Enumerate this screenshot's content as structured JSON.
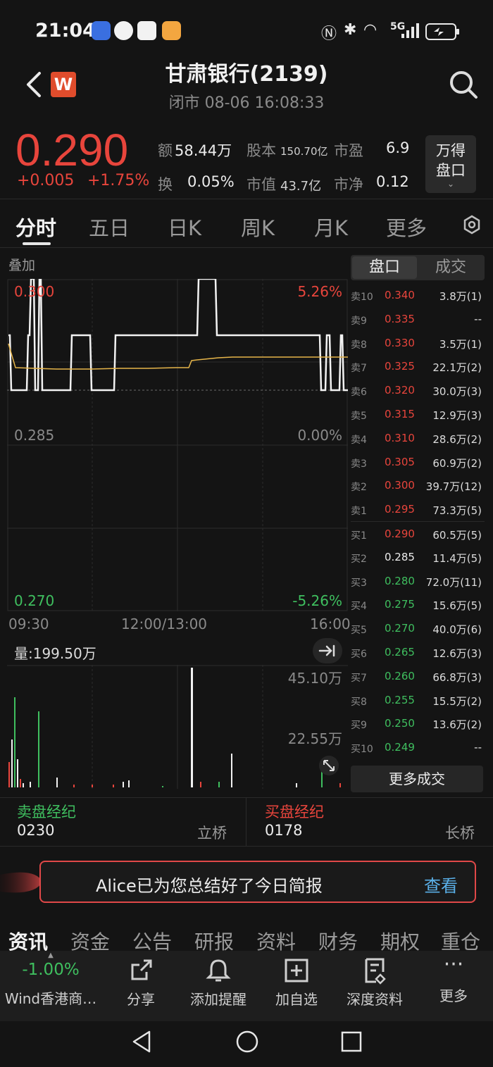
{
  "status_bar": {
    "time": "21:04",
    "network": "5G"
  },
  "header": {
    "logo_text": "W",
    "title": "甘肃银行(2139)",
    "subtitle": "闭市 08-06 16:08:33"
  },
  "quote": {
    "price": "0.290",
    "change": "+0.005",
    "change_pct": "+1.75%",
    "stats": {
      "amount_label": "额",
      "amount": "58.44万",
      "share_cap_label": "股本",
      "share_cap": "150.70亿",
      "pe_label": "市盈",
      "pe": "6.9",
      "turnover_label": "换",
      "turnover": "0.05%",
      "mkt_cap_label": "市值",
      "mkt_cap": "43.7亿",
      "pb_label": "市净",
      "pb": "0.12"
    },
    "wande_button": {
      "line1": "万得",
      "line2": "盘口"
    }
  },
  "tabs": [
    "分时",
    "五日",
    "日K",
    "周K",
    "月K",
    "更多"
  ],
  "chart": {
    "overlay_label": "叠加",
    "y_left": [
      "0.300",
      "0.285",
      "0.270"
    ],
    "y_right": [
      "5.26%",
      "0.00%",
      "-5.26%"
    ],
    "x_labels": [
      "09:30",
      "12:00/13:00",
      "16:00"
    ],
    "volume_label": "量:199.50万",
    "vol_ticks": [
      "45.10万",
      "22.55万"
    ]
  },
  "chart_data": {
    "type": "line",
    "ylim": [
      0.27,
      0.3
    ],
    "series": [],
    "volume_max": "45.10万"
  },
  "order_book": {
    "tabs": [
      "盘口",
      "成交"
    ],
    "asks": [
      {
        "label": "卖10",
        "price": "0.340",
        "vol": "3.8万(1)"
      },
      {
        "label": "卖9",
        "price": "0.335",
        "vol": "--"
      },
      {
        "label": "卖8",
        "price": "0.330",
        "vol": "3.5万(1)"
      },
      {
        "label": "卖7",
        "price": "0.325",
        "vol": "22.1万(2)"
      },
      {
        "label": "卖6",
        "price": "0.320",
        "vol": "30.0万(3)"
      },
      {
        "label": "卖5",
        "price": "0.315",
        "vol": "12.9万(3)"
      },
      {
        "label": "卖4",
        "price": "0.310",
        "vol": "28.6万(2)"
      },
      {
        "label": "卖3",
        "price": "0.305",
        "vol": "60.9万(2)"
      },
      {
        "label": "卖2",
        "price": "0.300",
        "vol": "39.7万(12)"
      },
      {
        "label": "卖1",
        "price": "0.295",
        "vol": "73.3万(5)"
      }
    ],
    "bids": [
      {
        "label": "买1",
        "price": "0.290",
        "vol": "60.5万(5)"
      },
      {
        "label": "买2",
        "price": "0.285",
        "vol": "11.4万(5)"
      },
      {
        "label": "买3",
        "price": "0.280",
        "vol": "72.0万(11)"
      },
      {
        "label": "买4",
        "price": "0.275",
        "vol": "15.6万(5)"
      },
      {
        "label": "买5",
        "price": "0.270",
        "vol": "40.0万(6)"
      },
      {
        "label": "买6",
        "price": "0.265",
        "vol": "12.6万(3)"
      },
      {
        "label": "买7",
        "price": "0.260",
        "vol": "66.8万(3)"
      },
      {
        "label": "买8",
        "price": "0.255",
        "vol": "15.5万(2)"
      },
      {
        "label": "买9",
        "price": "0.250",
        "vol": "13.6万(2)"
      },
      {
        "label": "买10",
        "price": "0.249",
        "vol": "--"
      }
    ],
    "more_trades": "更多成交"
  },
  "brokers": {
    "sell_title": "卖盘经纪",
    "sell_code": "0230",
    "sell_name": "立桥",
    "buy_title": "买盘经纪",
    "buy_code": "0178",
    "buy_name": "长桥"
  },
  "banner": {
    "text": "Alice已为您总结好了今日简报",
    "action": "查看"
  },
  "news_tabs": [
    "资讯",
    "资金",
    "公告",
    "研报",
    "资料",
    "财务",
    "期权",
    "重仓"
  ],
  "toolbar": {
    "index_change": "-1.00%",
    "index_name": "Wind香港商…",
    "share": "分享",
    "alert": "添加提醒",
    "add_watch": "加自选",
    "deep_data": "深度资料",
    "more": "更多"
  },
  "colors": {
    "up": "#e8453c",
    "down": "#3fbf5f",
    "bg": "#141414"
  }
}
